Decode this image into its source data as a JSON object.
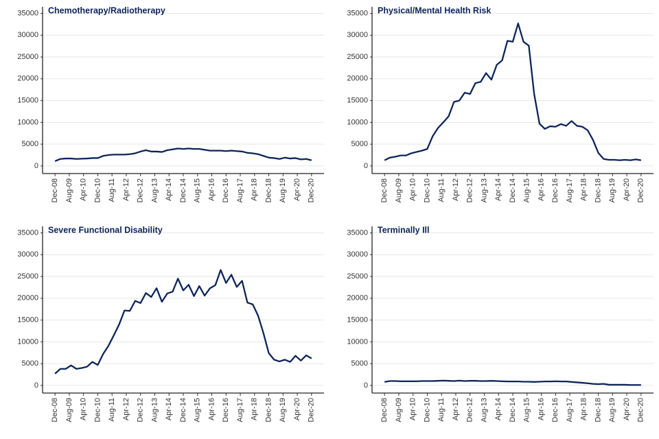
{
  "chart_data": [
    {
      "type": "line",
      "title": "Chemotherapy/Radiotherapy",
      "color": "#0c2459",
      "x": [
        "2008-12",
        "2009-03",
        "2009-06",
        "2009-09",
        "2009-12",
        "2010-03",
        "2010-06",
        "2010-09",
        "2010-12",
        "2011-03",
        "2011-06",
        "2011-09",
        "2011-12",
        "2012-03",
        "2012-06",
        "2012-09",
        "2012-12",
        "2013-03",
        "2013-06",
        "2013-09",
        "2013-12",
        "2014-03",
        "2014-06",
        "2014-09",
        "2014-12",
        "2015-03",
        "2015-06",
        "2015-09",
        "2015-12",
        "2016-03",
        "2016-06",
        "2016-09",
        "2016-12",
        "2017-03",
        "2017-06",
        "2017-09",
        "2017-12",
        "2018-03",
        "2018-06",
        "2018-09",
        "2018-12",
        "2019-03",
        "2019-06",
        "2019-09",
        "2019-12",
        "2020-03",
        "2020-06",
        "2020-09",
        "2020-12"
      ],
      "values": [
        1100,
        1600,
        1700,
        1700,
        1600,
        1650,
        1700,
        1800,
        1800,
        2300,
        2500,
        2600,
        2600,
        2600,
        2700,
        2900,
        3300,
        3600,
        3300,
        3300,
        3200,
        3600,
        3800,
        4000,
        3900,
        4000,
        3900,
        3900,
        3700,
        3500,
        3500,
        3500,
        3400,
        3500,
        3400,
        3300,
        3000,
        2900,
        2700,
        2300,
        1900,
        1800,
        1600,
        1900,
        1700,
        1800,
        1500,
        1600,
        1300
      ],
      "xlim": [
        "2008-05",
        "2021-07"
      ],
      "xticks": [
        {
          "value": "2008-12",
          "label": "Dec-08"
        },
        {
          "value": "2009-08",
          "label": "Aug-09"
        },
        {
          "value": "2010-04",
          "label": "Apr-10"
        },
        {
          "value": "2010-12",
          "label": "Dec-10"
        },
        {
          "value": "2011-08",
          "label": "Aug-11"
        },
        {
          "value": "2012-04",
          "label": "Apr-12"
        },
        {
          "value": "2012-12",
          "label": "Dec-12"
        },
        {
          "value": "2013-08",
          "label": "Aug-13"
        },
        {
          "value": "2014-04",
          "label": "Apr-14"
        },
        {
          "value": "2014-12",
          "label": "Dec-14"
        },
        {
          "value": "2015-08",
          "label": "Aug-15"
        },
        {
          "value": "2016-04",
          "label": "Apr-16"
        },
        {
          "value": "2016-12",
          "label": "Dec-16"
        },
        {
          "value": "2017-08",
          "label": "Aug-17"
        },
        {
          "value": "2018-04",
          "label": "Apr-18"
        },
        {
          "value": "2018-12",
          "label": "Dec-18"
        },
        {
          "value": "2019-08",
          "label": "Aug-19"
        },
        {
          "value": "2020-04",
          "label": "Apr-20"
        },
        {
          "value": "2020-12",
          "label": "Dec-20"
        }
      ],
      "ylim": [
        -1750,
        36500
      ],
      "yticks": [
        0,
        5000,
        10000,
        15000,
        20000,
        25000,
        30000,
        35000
      ],
      "grid": true
    },
    {
      "type": "line",
      "title": "Physical/Mental Health Risk",
      "color": "#0c2459",
      "x": [
        "2008-12",
        "2009-03",
        "2009-06",
        "2009-09",
        "2009-12",
        "2010-03",
        "2010-06",
        "2010-09",
        "2010-12",
        "2011-03",
        "2011-06",
        "2011-09",
        "2011-12",
        "2012-03",
        "2012-06",
        "2012-09",
        "2012-12",
        "2013-03",
        "2013-06",
        "2013-09",
        "2013-12",
        "2014-03",
        "2014-06",
        "2014-09",
        "2014-12",
        "2015-03",
        "2015-06",
        "2015-09",
        "2015-12",
        "2016-03",
        "2016-06",
        "2016-09",
        "2016-12",
        "2017-03",
        "2017-06",
        "2017-09",
        "2017-12",
        "2018-03",
        "2018-06",
        "2018-09",
        "2018-12",
        "2019-03",
        "2019-06",
        "2019-09",
        "2019-12",
        "2020-03",
        "2020-06",
        "2020-09",
        "2020-12"
      ],
      "values": [
        1300,
        1900,
        2100,
        2400,
        2400,
        2900,
        3200,
        3500,
        3900,
        6800,
        8700,
        10000,
        11400,
        14700,
        15000,
        16800,
        16500,
        19000,
        19300,
        21300,
        19800,
        23200,
        24200,
        28700,
        28500,
        32700,
        28500,
        27600,
        16500,
        9700,
        8500,
        9100,
        9000,
        9600,
        9200,
        10300,
        9200,
        9000,
        8200,
        6000,
        3000,
        1600,
        1400,
        1400,
        1300,
        1400,
        1300,
        1500,
        1300
      ],
      "xlim": [
        "2008-05",
        "2021-07"
      ],
      "xticks": [
        {
          "value": "2008-12",
          "label": "Dec-08"
        },
        {
          "value": "2009-08",
          "label": "Aug-09"
        },
        {
          "value": "2010-04",
          "label": "Apr-10"
        },
        {
          "value": "2010-12",
          "label": "Dec-10"
        },
        {
          "value": "2011-08",
          "label": "Aug-11"
        },
        {
          "value": "2012-04",
          "label": "Apr-12"
        },
        {
          "value": "2012-12",
          "label": "Dec-12"
        },
        {
          "value": "2013-08",
          "label": "Aug-13"
        },
        {
          "value": "2014-04",
          "label": "Apr-14"
        },
        {
          "value": "2014-12",
          "label": "Dec-14"
        },
        {
          "value": "2015-08",
          "label": "Aug-15"
        },
        {
          "value": "2016-04",
          "label": "Apr-16"
        },
        {
          "value": "2016-12",
          "label": "Dec-16"
        },
        {
          "value": "2017-08",
          "label": "Aug-17"
        },
        {
          "value": "2018-04",
          "label": "Apr-18"
        },
        {
          "value": "2018-12",
          "label": "Dec-18"
        },
        {
          "value": "2019-08",
          "label": "Aug-19"
        },
        {
          "value": "2020-04",
          "label": "Apr-20"
        },
        {
          "value": "2020-12",
          "label": "Dec-20"
        }
      ],
      "ylim": [
        -1750,
        36500
      ],
      "yticks": [
        0,
        5000,
        10000,
        15000,
        20000,
        25000,
        30000,
        35000
      ],
      "grid": true
    },
    {
      "type": "line",
      "title": "Severe Functional Disability",
      "color": "#0c2459",
      "x": [
        "2008-12",
        "2009-03",
        "2009-06",
        "2009-09",
        "2009-12",
        "2010-03",
        "2010-06",
        "2010-09",
        "2010-12",
        "2011-03",
        "2011-06",
        "2011-09",
        "2011-12",
        "2012-03",
        "2012-06",
        "2012-09",
        "2012-12",
        "2013-03",
        "2013-06",
        "2013-09",
        "2013-12",
        "2014-03",
        "2014-06",
        "2014-09",
        "2014-12",
        "2015-03",
        "2015-06",
        "2015-09",
        "2015-12",
        "2016-03",
        "2016-06",
        "2016-09",
        "2016-12",
        "2017-03",
        "2017-06",
        "2017-09",
        "2017-12",
        "2018-03",
        "2018-06",
        "2018-09",
        "2018-12",
        "2019-03",
        "2019-06",
        "2019-09",
        "2019-12",
        "2020-03",
        "2020-06",
        "2020-09",
        "2020-12"
      ],
      "values": [
        2700,
        3800,
        3800,
        4600,
        3800,
        4000,
        4300,
        5400,
        4700,
        7200,
        9100,
        11500,
        14000,
        17200,
        17100,
        19400,
        18900,
        21200,
        20300,
        22300,
        19200,
        21100,
        21500,
        24500,
        21800,
        23100,
        20500,
        22800,
        20600,
        22300,
        23000,
        26500,
        23500,
        25400,
        22600,
        24000,
        19000,
        18600,
        16000,
        12000,
        7400,
        5900,
        5500,
        5900,
        5400,
        6800,
        5700,
        6900,
        6200
      ],
      "xlim": [
        "2008-05",
        "2021-07"
      ],
      "xticks": [
        {
          "value": "2008-12",
          "label": "Dec-08"
        },
        {
          "value": "2009-08",
          "label": "Aug-09"
        },
        {
          "value": "2010-04",
          "label": "Apr-10"
        },
        {
          "value": "2010-12",
          "label": "Dec-10"
        },
        {
          "value": "2011-08",
          "label": "Aug-11"
        },
        {
          "value": "2012-04",
          "label": "Apr-12"
        },
        {
          "value": "2012-12",
          "label": "Dec-12"
        },
        {
          "value": "2013-08",
          "label": "Aug-13"
        },
        {
          "value": "2014-04",
          "label": "Apr-14"
        },
        {
          "value": "2014-12",
          "label": "Dec-14"
        },
        {
          "value": "2015-08",
          "label": "Aug-15"
        },
        {
          "value": "2016-04",
          "label": "Apr-16"
        },
        {
          "value": "2016-12",
          "label": "Dec-16"
        },
        {
          "value": "2017-08",
          "label": "Aug-17"
        },
        {
          "value": "2018-04",
          "label": "Apr-18"
        },
        {
          "value": "2018-12",
          "label": "Dec-18"
        },
        {
          "value": "2019-08",
          "label": "Aug-19"
        },
        {
          "value": "2020-04",
          "label": "Apr-20"
        },
        {
          "value": "2020-12",
          "label": "Dec-20"
        }
      ],
      "ylim": [
        -1750,
        36500
      ],
      "yticks": [
        0,
        5000,
        10000,
        15000,
        20000,
        25000,
        30000,
        35000
      ],
      "grid": true
    },
    {
      "type": "line",
      "title": "Terminally Ill",
      "color": "#0c2459",
      "x": [
        "2008-12",
        "2009-03",
        "2009-06",
        "2009-09",
        "2009-12",
        "2010-03",
        "2010-06",
        "2010-09",
        "2010-12",
        "2011-03",
        "2011-06",
        "2011-09",
        "2011-12",
        "2012-03",
        "2012-06",
        "2012-09",
        "2012-12",
        "2013-03",
        "2013-06",
        "2013-09",
        "2013-12",
        "2014-03",
        "2014-06",
        "2014-09",
        "2014-12",
        "2015-03",
        "2015-06",
        "2015-09",
        "2015-12",
        "2016-03",
        "2016-06",
        "2016-09",
        "2016-12",
        "2017-03",
        "2017-06",
        "2017-09",
        "2017-12",
        "2018-03",
        "2018-06",
        "2018-09",
        "2018-12",
        "2019-03",
        "2019-06",
        "2019-09",
        "2019-12",
        "2020-03",
        "2020-06",
        "2020-09",
        "2020-12"
      ],
      "values": [
        800,
        1000,
        1000,
        950,
        950,
        950,
        950,
        1000,
        1000,
        1000,
        1050,
        1100,
        1050,
        1000,
        1100,
        1000,
        1050,
        1050,
        1000,
        1000,
        1050,
        1000,
        950,
        900,
        900,
        900,
        850,
        850,
        800,
        850,
        900,
        900,
        950,
        900,
        900,
        800,
        700,
        600,
        500,
        350,
        300,
        350,
        150,
        150,
        150,
        150,
        100,
        100,
        100
      ],
      "xlim": [
        "2008-05",
        "2021-07"
      ],
      "xticks": [
        {
          "value": "2008-12",
          "label": "Dec-08"
        },
        {
          "value": "2009-08",
          "label": "Aug-09"
        },
        {
          "value": "2010-04",
          "label": "Apr-10"
        },
        {
          "value": "2010-12",
          "label": "Dec-10"
        },
        {
          "value": "2011-08",
          "label": "Aug-11"
        },
        {
          "value": "2012-04",
          "label": "Apr-12"
        },
        {
          "value": "2012-12",
          "label": "Dec-12"
        },
        {
          "value": "2013-08",
          "label": "Aug-13"
        },
        {
          "value": "2014-04",
          "label": "Apr-14"
        },
        {
          "value": "2014-12",
          "label": "Dec-14"
        },
        {
          "value": "2015-08",
          "label": "Aug-15"
        },
        {
          "value": "2016-04",
          "label": "Apr-16"
        },
        {
          "value": "2016-12",
          "label": "Dec-16"
        },
        {
          "value": "2017-08",
          "label": "Aug-17"
        },
        {
          "value": "2018-04",
          "label": "Apr-18"
        },
        {
          "value": "2018-12",
          "label": "Dec-18"
        },
        {
          "value": "2019-08",
          "label": "Aug-19"
        },
        {
          "value": "2020-04",
          "label": "Apr-20"
        },
        {
          "value": "2020-12",
          "label": "Dec-20"
        }
      ],
      "ylim": [
        -1750,
        36500
      ],
      "yticks": [
        0,
        5000,
        10000,
        15000,
        20000,
        25000,
        30000,
        35000
      ],
      "grid": true
    }
  ]
}
